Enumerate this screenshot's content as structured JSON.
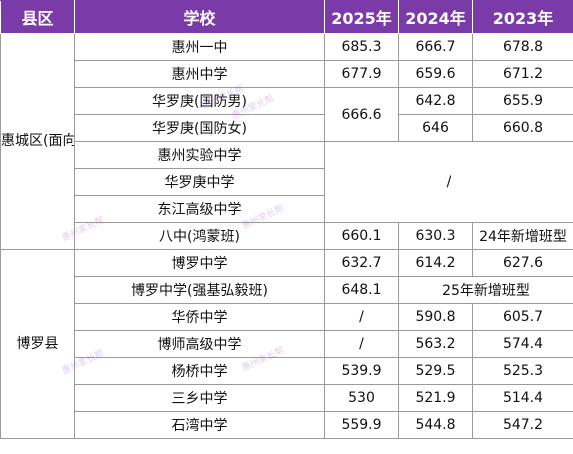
{
  "headers": [
    "县区",
    "学校",
    "2025年",
    "2024年",
    "2023年"
  ],
  "districts": {
    "huicheng": "惠城区(面向博罗招生)",
    "boluo": "博罗县"
  },
  "rows": [
    {
      "school": "惠州一中",
      "y2025": "685.3",
      "y2024": "666.7",
      "y2023": "678.8"
    },
    {
      "school": "惠州中学",
      "y2025": "677.9",
      "y2024": "659.6",
      "y2023": "671.2"
    },
    {
      "school": "华罗庚(国防男)",
      "y2025": "666.6",
      "y2024": "642.8",
      "y2023": "655.9"
    },
    {
      "school": "华罗庚(国防女)",
      "y2024": "646",
      "y2023": "660.8"
    },
    {
      "school": "惠州实验中学"
    },
    {
      "school": "华罗庚中学"
    },
    {
      "school": "东江高级中学"
    },
    {
      "school": "八中(鸿蒙班)",
      "y2025": "660.1",
      "y2024": "630.3",
      "y2023": "24年新增班型"
    },
    {
      "school": "博罗中学",
      "y2025": "632.7",
      "y2024": "614.2",
      "y2023": "627.6"
    },
    {
      "school": "博罗中学(强基弘毅班)",
      "y2025": "648.1",
      "y2024": "25年新增班型"
    },
    {
      "school": "华侨中学",
      "y2025": "/",
      "y2024": "590.8",
      "y2023": "605.7"
    },
    {
      "school": "博师高级中学",
      "y2025": "/",
      "y2024": "563.2",
      "y2023": "574.4"
    },
    {
      "school": "杨桥中学",
      "y2025": "539.9",
      "y2024": "529.5",
      "y2023": "525.3"
    },
    {
      "school": "三乡中学",
      "y2025": "530",
      "y2024": "521.9",
      "y2023": "514.4"
    },
    {
      "school": "石湾中学",
      "y2025": "559.9",
      "y2024": "544.8",
      "y2023": "547.2"
    }
  ],
  "merged_slash": "/",
  "watermark": "惠州家长帮",
  "colors": {
    "header_bg": "#7a3aa8",
    "header_text": "#ffffff",
    "border": "#9a9a9a"
  }
}
